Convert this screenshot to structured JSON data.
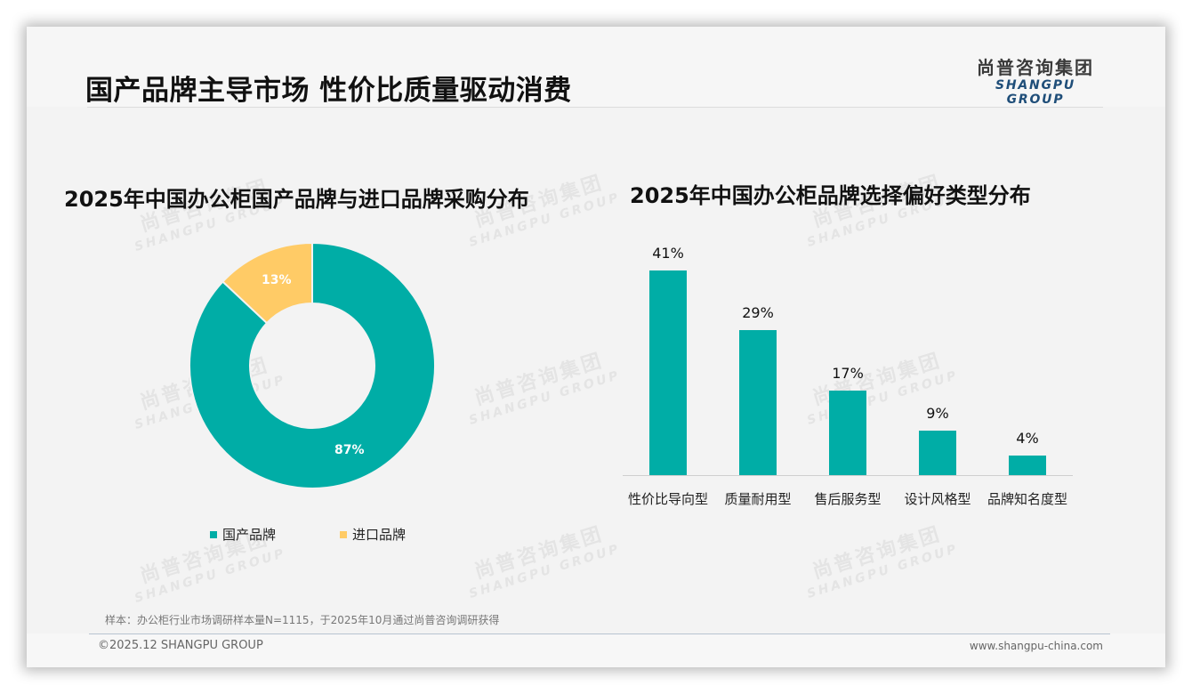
{
  "header": {
    "title": "国产品牌主导市场 性价比质量驱动消费",
    "logo_cn": "尚普咨询集团",
    "logo_en": "SHANGPU GROUP"
  },
  "watermark": {
    "cn": "尚普咨询集团",
    "en": "SHANGPU GROUP"
  },
  "colors": {
    "teal": "#00ADA6",
    "yellow": "#FFCB66",
    "logo_blue": "#1F4E79"
  },
  "chart_data": [
    {
      "type": "pie",
      "title": "2025年中国办公柜国产品牌与进口品牌采购分布",
      "categories": [
        "国产品牌",
        "进口品牌"
      ],
      "values": [
        87,
        13
      ],
      "labels": [
        "87%",
        "13%"
      ],
      "colors": [
        "#00ADA6",
        "#FFCB66"
      ],
      "donut": true,
      "legend_position": "bottom"
    },
    {
      "type": "bar",
      "title": "2025年中国办公柜品牌选择偏好类型分布",
      "categories": [
        "性价比导向型",
        "质量耐用型",
        "售后服务型",
        "设计风格型",
        "品牌知名度型"
      ],
      "values": [
        41,
        29,
        17,
        9,
        4
      ],
      "labels": [
        "41%",
        "29%",
        "17%",
        "9%",
        "4%"
      ],
      "xlabel": "",
      "ylabel": "",
      "ylim": [
        0,
        45
      ],
      "grid": false,
      "color": "#00ADA6"
    }
  ],
  "legend": [
    {
      "label": "国产品牌",
      "color": "#00ADA6"
    },
    {
      "label": "进口品牌",
      "color": "#FFCB66"
    }
  ],
  "footer": {
    "note": "样本：办公柜行业市场调研样本量N=1115，于2025年10月通过尚普咨询调研获得",
    "copyright": "©2025.12 SHANGPU GROUP",
    "website": "www.shangpu-china.com"
  }
}
